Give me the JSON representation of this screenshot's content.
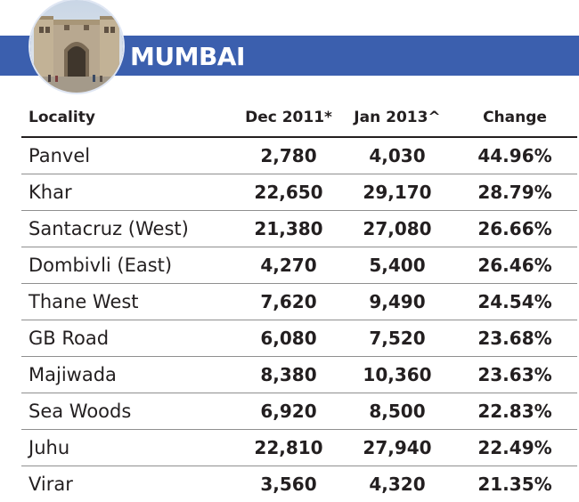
{
  "header": {
    "city": "MUMBAI",
    "banner_color": "#3b5fae"
  },
  "table": {
    "columns": [
      "Locality",
      "Dec 2011*",
      "Jan 2013^",
      "Change"
    ],
    "rows": [
      {
        "locality": "Panvel",
        "dec2011": "2,780",
        "jan2013": "4,030",
        "change": "44.96%"
      },
      {
        "locality": "Khar",
        "dec2011": "22,650",
        "jan2013": "29,170",
        "change": "28.79%"
      },
      {
        "locality": "Santacruz (West)",
        "dec2011": "21,380",
        "jan2013": "27,080",
        "change": "26.66%"
      },
      {
        "locality": "Dombivli (East)",
        "dec2011": "4,270",
        "jan2013": "5,400",
        "change": "26.46%"
      },
      {
        "locality": "Thane West",
        "dec2011": "7,620",
        "jan2013": "9,490",
        "change": "24.54%"
      },
      {
        "locality": "GB Road",
        "dec2011": "6,080",
        "jan2013": "7,520",
        "change": "23.68%"
      },
      {
        "locality": "Majiwada",
        "dec2011": "8,380",
        "jan2013": "10,360",
        "change": "23.63%"
      },
      {
        "locality": "Sea Woods",
        "dec2011": "6,920",
        "jan2013": "8,500",
        "change": "22.83%"
      },
      {
        "locality": "Juhu",
        "dec2011": "22,810",
        "jan2013": "27,940",
        "change": "22.49%"
      },
      {
        "locality": "Virar",
        "dec2011": "3,560",
        "jan2013": "4,320",
        "change": "21.35%"
      }
    ]
  }
}
